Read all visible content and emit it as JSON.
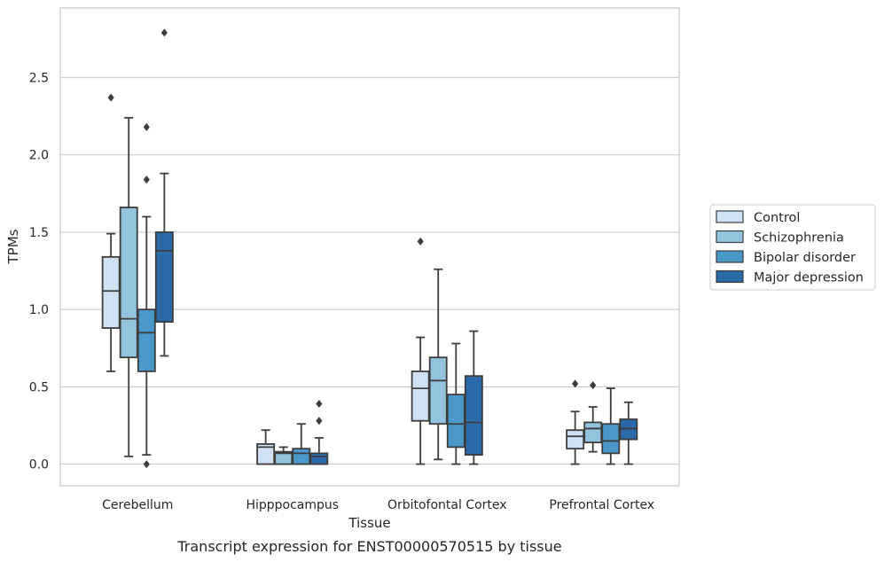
{
  "caption": "Transcript expression for ENST00000570515 by tissue",
  "chart_data": {
    "type": "box",
    "xlabel": "Tissue",
    "ylabel": "TPMs",
    "ylim": [
      -0.14,
      2.95
    ],
    "yticks": [
      0.0,
      0.5,
      1.0,
      1.5,
      2.0,
      2.5
    ],
    "grid": "horizontal",
    "legend_position": "right",
    "categories": [
      "Cerebellum",
      "Hipppocampus",
      "Orbitofontal Cortex",
      "Prefrontal Cortex"
    ],
    "series": [
      {
        "name": "Control",
        "color": "#cfe1f2",
        "boxes": [
          {
            "min": 0.6,
            "q1": 0.88,
            "median": 1.12,
            "q3": 1.34,
            "max": 1.49,
            "outliers": [
              2.37
            ]
          },
          {
            "min": 0.0,
            "q1": 0.0,
            "median": 0.11,
            "q3": 0.13,
            "max": 0.22,
            "outliers": []
          },
          {
            "min": 0.0,
            "q1": 0.28,
            "median": 0.49,
            "q3": 0.6,
            "max": 0.82,
            "outliers": [
              1.44
            ]
          },
          {
            "min": 0.0,
            "q1": 0.1,
            "median": 0.18,
            "q3": 0.22,
            "max": 0.34,
            "outliers": [
              0.52
            ]
          }
        ]
      },
      {
        "name": "Schizophrenia",
        "color": "#93c4de",
        "boxes": [
          {
            "min": 0.05,
            "q1": 0.69,
            "median": 0.94,
            "q3": 1.66,
            "max": 2.24,
            "outliers": []
          },
          {
            "min": 0.0,
            "q1": 0.0,
            "median": 0.07,
            "q3": 0.08,
            "max": 0.11,
            "outliers": []
          },
          {
            "min": 0.03,
            "q1": 0.26,
            "median": 0.54,
            "q3": 0.69,
            "max": 1.26,
            "outliers": []
          },
          {
            "min": 0.08,
            "q1": 0.14,
            "median": 0.23,
            "q3": 0.27,
            "max": 0.37,
            "outliers": [
              0.51
            ]
          }
        ]
      },
      {
        "name": "Bipolar disorder",
        "color": "#4a98c9",
        "boxes": [
          {
            "min": 0.06,
            "q1": 0.6,
            "median": 0.85,
            "q3": 1.0,
            "max": 1.6,
            "outliers": [
              2.18,
              1.84,
              0.0
            ]
          },
          {
            "min": 0.0,
            "q1": 0.0,
            "median": 0.07,
            "q3": 0.1,
            "max": 0.26,
            "outliers": []
          },
          {
            "min": 0.0,
            "q1": 0.11,
            "median": 0.26,
            "q3": 0.45,
            "max": 0.78,
            "outliers": []
          },
          {
            "min": 0.0,
            "q1": 0.07,
            "median": 0.15,
            "q3": 0.26,
            "max": 0.49,
            "outliers": []
          }
        ]
      },
      {
        "name": "Major depression",
        "color": "#2b6aa8",
        "boxes": [
          {
            "min": 0.7,
            "q1": 0.92,
            "median": 1.38,
            "q3": 1.5,
            "max": 1.88,
            "outliers": [
              2.79
            ]
          },
          {
            "min": 0.0,
            "q1": 0.0,
            "median": 0.05,
            "q3": 0.07,
            "max": 0.17,
            "outliers": [
              0.39,
              0.28
            ]
          },
          {
            "min": 0.0,
            "q1": 0.06,
            "median": 0.27,
            "q3": 0.57,
            "max": 0.86,
            "outliers": []
          },
          {
            "min": 0.0,
            "q1": 0.16,
            "median": 0.23,
            "q3": 0.29,
            "max": 0.4,
            "outliers": []
          }
        ]
      }
    ]
  }
}
